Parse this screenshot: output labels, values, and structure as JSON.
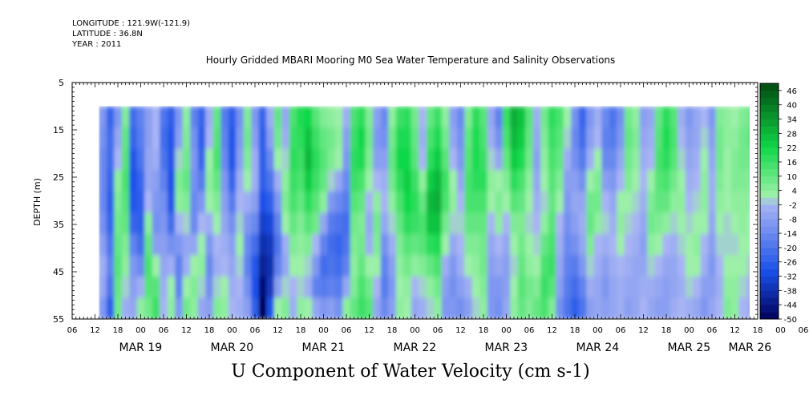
{
  "header": {
    "longitude": "LONGITUDE : 121.9W(-121.9)",
    "latitude": "LATITUDE : 36.8N",
    "year": "YEAR : 2011",
    "title": "Hourly Gridded MBARI Mooring M0 Sea Water Temperature and Salinity Observations"
  },
  "bottom_title": "U Component of Water Velocity (cm s-1)",
  "colors": {
    "deep_negative": "#00005a",
    "mid_negative": "#1a50e8",
    "light_negative": "#a8b4f4",
    "light_positive": "#9cf0a8",
    "mid_positive": "#10d848",
    "deep_positive": "#004a10"
  },
  "chart_data": {
    "type": "heatmap",
    "title": "Hourly Gridded MBARI Mooring M0 Sea Water Temperature and Salinity Observations",
    "variable": "U Component of Water Velocity (cm s-1)",
    "ylabel": "DEPTH (m)",
    "ylim": [
      5,
      55
    ],
    "y_inverted": true,
    "y_ticks": [
      5,
      15,
      25,
      35,
      45,
      55
    ],
    "data_depth_range": [
      10,
      55
    ],
    "x_start_hours": 6,
    "x_end_hours": 186,
    "data_start_hours": 13,
    "x_tick_labels": [
      "06",
      "12",
      "18",
      "00",
      "06",
      "12",
      "18",
      "00",
      "06",
      "12",
      "18",
      "00",
      "06",
      "12",
      "18",
      "00",
      "06",
      "12",
      "18",
      "00",
      "06",
      "12",
      "18",
      "00",
      "06",
      "12",
      "18",
      "00",
      "06",
      "12",
      "18",
      "00",
      "06"
    ],
    "day_labels": [
      {
        "label": "MAR 19",
        "hour": 24
      },
      {
        "label": "MAR 20",
        "hour": 48
      },
      {
        "label": "MAR 21",
        "hour": 72
      },
      {
        "label": "MAR 22",
        "hour": 96
      },
      {
        "label": "MAR 23",
        "hour": 120
      },
      {
        "label": "MAR 24",
        "hour": 144
      },
      {
        "label": "MAR 25",
        "hour": 168
      },
      {
        "label": "MAR 26",
        "hour": 184
      }
    ],
    "colorbar_labels": [
      "46",
      "40",
      "34",
      "28",
      "22",
      "16",
      "10",
      "4",
      "-2",
      "-8",
      "-14",
      "-20",
      "-26",
      "-32",
      "-38",
      "-44",
      "-50"
    ],
    "colorbar_range": [
      -50,
      49
    ],
    "colorbar_step": 3,
    "grid": false,
    "legend_placement": "right",
    "columns": [
      {
        "hour": 13,
        "u": [
          -10,
          -12,
          -14,
          -14,
          -14,
          -12,
          -8,
          -4,
          -6,
          -10
        ]
      },
      {
        "hour": 15,
        "u": [
          -24,
          -22,
          -22,
          -24,
          -26,
          -24,
          -20,
          -16,
          -20,
          -26
        ]
      },
      {
        "hour": 17,
        "u": [
          -10,
          -6,
          -2,
          4,
          6,
          8,
          10,
          12,
          10,
          8
        ]
      },
      {
        "hour": 19,
        "u": [
          6,
          10,
          12,
          14,
          12,
          10,
          6,
          4,
          0,
          -4
        ]
      },
      {
        "hour": 21,
        "u": [
          -22,
          -24,
          -28,
          -30,
          -28,
          -24,
          -16,
          -10,
          -8,
          -6
        ]
      },
      {
        "hour": 23,
        "u": [
          -16,
          -18,
          -20,
          -24,
          -26,
          -26,
          -22,
          -14,
          -4,
          4
        ]
      },
      {
        "hour": 25,
        "u": [
          -8,
          -8,
          -6,
          -6,
          -2,
          4,
          10,
          14,
          12,
          8
        ]
      },
      {
        "hour": 27,
        "u": [
          -2,
          -2,
          -4,
          -8,
          -10,
          -12,
          -8,
          2,
          12,
          16
        ]
      },
      {
        "hour": 29,
        "u": [
          -20,
          -22,
          -20,
          -16,
          -12,
          -10,
          -8,
          -6,
          -4,
          -2
        ]
      },
      {
        "hour": 31,
        "u": [
          -26,
          -28,
          -28,
          -30,
          -28,
          -22,
          -12,
          -4,
          2,
          4
        ]
      },
      {
        "hour": 33,
        "u": [
          -10,
          -8,
          0,
          6,
          4,
          -2,
          -10,
          -16,
          -16,
          -10
        ]
      },
      {
        "hour": 35,
        "u": [
          4,
          6,
          8,
          10,
          6,
          0,
          -6,
          -4,
          2,
          8
        ]
      },
      {
        "hour": 37,
        "u": [
          -16,
          -12,
          -10,
          -12,
          -14,
          -14,
          -6,
          2,
          6,
          4
        ]
      },
      {
        "hour": 39,
        "u": [
          -24,
          -26,
          -24,
          -18,
          -10,
          -2,
          2,
          4,
          0,
          -6
        ]
      },
      {
        "hour": 41,
        "u": [
          -4,
          -2,
          2,
          4,
          2,
          -4,
          -10,
          -14,
          -12,
          -8
        ]
      },
      {
        "hour": 43,
        "u": [
          10,
          12,
          14,
          10,
          6,
          2,
          -2,
          -4,
          0,
          6
        ]
      },
      {
        "hour": 45,
        "u": [
          -18,
          -16,
          -14,
          -10,
          -8,
          -6,
          -4,
          -2,
          2,
          4
        ]
      },
      {
        "hour": 47,
        "u": [
          -26,
          -28,
          -28,
          -24,
          -18,
          -12,
          -8,
          -6,
          -4,
          -2
        ]
      },
      {
        "hour": 49,
        "u": [
          -12,
          -10,
          -8,
          -4,
          -2,
          0,
          2,
          0,
          -2,
          -4
        ]
      },
      {
        "hour": 51,
        "u": [
          6,
          8,
          6,
          2,
          -4,
          -10,
          -14,
          -16,
          -12,
          -8
        ]
      },
      {
        "hour": 53,
        "u": [
          -10,
          -8,
          -4,
          -4,
          -8,
          -14,
          -22,
          -28,
          -30,
          -26
        ]
      },
      {
        "hour": 55,
        "u": [
          -24,
          -26,
          -26,
          -26,
          -30,
          -34,
          -38,
          -42,
          -46,
          -50
        ]
      },
      {
        "hour": 57,
        "u": [
          -4,
          -8,
          -14,
          -20,
          -26,
          -32,
          -36,
          -38,
          -36,
          -30
        ]
      },
      {
        "hour": 59,
        "u": [
          10,
          8,
          2,
          -4,
          -10,
          -16,
          -20,
          -16,
          -8,
          2
        ]
      },
      {
        "hour": 61,
        "u": [
          -6,
          -4,
          0,
          4,
          6,
          2,
          -4,
          -6,
          0,
          6
        ]
      },
      {
        "hour": 63,
        "u": [
          14,
          16,
          18,
          16,
          14,
          10,
          6,
          2,
          -2,
          -4
        ]
      },
      {
        "hour": 65,
        "u": [
          20,
          18,
          16,
          14,
          10,
          6,
          4,
          2,
          0,
          4
        ]
      },
      {
        "hour": 67,
        "u": [
          22,
          26,
          28,
          24,
          18,
          12,
          6,
          0,
          -4,
          2
        ]
      },
      {
        "hour": 69,
        "u": [
          12,
          16,
          18,
          16,
          12,
          8,
          -2,
          -10,
          -16,
          -6
        ]
      },
      {
        "hour": 71,
        "u": [
          6,
          10,
          12,
          10,
          4,
          -6,
          -16,
          -22,
          -18,
          -10
        ]
      },
      {
        "hour": 73,
        "u": [
          4,
          8,
          6,
          0,
          -10,
          -18,
          -22,
          -20,
          -16,
          -8
        ]
      },
      {
        "hour": 75,
        "u": [
          2,
          4,
          2,
          -6,
          -14,
          -20,
          -24,
          -22,
          -18,
          -12
        ]
      },
      {
        "hour": 77,
        "u": [
          -4,
          -8,
          -10,
          -14,
          -18,
          -22,
          -20,
          -16,
          -6,
          4
        ]
      },
      {
        "hour": 79,
        "u": [
          14,
          16,
          18,
          16,
          12,
          8,
          6,
          4,
          6,
          10
        ]
      },
      {
        "hour": 81,
        "u": [
          18,
          22,
          20,
          14,
          10,
          6,
          8,
          10,
          14,
          16
        ]
      },
      {
        "hour": 83,
        "u": [
          6,
          8,
          6,
          2,
          -2,
          -6,
          -4,
          2,
          8,
          12
        ]
      },
      {
        "hour": 85,
        "u": [
          -8,
          -10,
          -8,
          -2,
          4,
          8,
          6,
          2,
          -2,
          -6
        ]
      },
      {
        "hour": 87,
        "u": [
          -14,
          -12,
          -8,
          -4,
          -2,
          -6,
          -12,
          -16,
          -18,
          -14
        ]
      },
      {
        "hour": 89,
        "u": [
          4,
          8,
          10,
          8,
          4,
          0,
          -4,
          -8,
          -10,
          -8
        ]
      },
      {
        "hour": 91,
        "u": [
          16,
          20,
          22,
          18,
          14,
          10,
          6,
          4,
          2,
          4
        ]
      },
      {
        "hour": 93,
        "u": [
          18,
          20,
          22,
          24,
          22,
          18,
          12,
          8,
          4,
          2
        ]
      },
      {
        "hour": 95,
        "u": [
          8,
          10,
          12,
          16,
          18,
          16,
          10,
          4,
          -2,
          -6
        ]
      },
      {
        "hour": 97,
        "u": [
          -2,
          -4,
          -2,
          4,
          10,
          14,
          12,
          6,
          0,
          -4
        ]
      },
      {
        "hour": 99,
        "u": [
          10,
          14,
          18,
          24,
          28,
          26,
          18,
          10,
          4,
          0
        ]
      },
      {
        "hour": 101,
        "u": [
          16,
          20,
          24,
          28,
          30,
          26,
          20,
          14,
          8,
          4
        ]
      },
      {
        "hour": 103,
        "u": [
          4,
          8,
          12,
          16,
          14,
          8,
          2,
          -4,
          -8,
          -10
        ]
      },
      {
        "hour": 105,
        "u": [
          -8,
          -6,
          -2,
          2,
          4,
          0,
          -6,
          -10,
          -12,
          -10
        ]
      },
      {
        "hour": 107,
        "u": [
          -14,
          -12,
          -10,
          -6,
          -2,
          0,
          -2,
          -4,
          -8,
          -12
        ]
      },
      {
        "hour": 109,
        "u": [
          6,
          10,
          12,
          14,
          14,
          10,
          6,
          2,
          -4,
          -8
        ]
      },
      {
        "hour": 111,
        "u": [
          18,
          20,
          20,
          18,
          14,
          10,
          6,
          4,
          2,
          0
        ]
      },
      {
        "hour": 113,
        "u": [
          12,
          14,
          16,
          18,
          14,
          10,
          8,
          8,
          6,
          4
        ]
      },
      {
        "hour": 115,
        "u": [
          -6,
          -4,
          0,
          4,
          2,
          -2,
          -6,
          -8,
          -10,
          -10
        ]
      },
      {
        "hour": 117,
        "u": [
          -16,
          -12,
          -6,
          2,
          6,
          4,
          -2,
          -6,
          -10,
          -12
        ]
      },
      {
        "hour": 119,
        "u": [
          16,
          14,
          10,
          6,
          2,
          -2,
          -6,
          -8,
          -8,
          -6
        ]
      },
      {
        "hour": 121,
        "u": [
          30,
          28,
          24,
          18,
          12,
          6,
          2,
          0,
          2,
          4
        ]
      },
      {
        "hour": 123,
        "u": [
          26,
          24,
          20,
          14,
          10,
          6,
          8,
          10,
          12,
          10
        ]
      },
      {
        "hour": 125,
        "u": [
          12,
          10,
          8,
          4,
          2,
          0,
          2,
          4,
          8,
          6
        ]
      },
      {
        "hour": 127,
        "u": [
          -4,
          -6,
          -8,
          -6,
          -4,
          -2,
          0,
          2,
          6,
          10
        ]
      },
      {
        "hour": 129,
        "u": [
          8,
          6,
          4,
          2,
          0,
          4,
          10,
          14,
          16,
          14
        ]
      },
      {
        "hour": 131,
        "u": [
          18,
          16,
          14,
          12,
          10,
          12,
          14,
          16,
          12,
          6
        ]
      },
      {
        "hour": 133,
        "u": [
          14,
          12,
          10,
          6,
          2,
          -2,
          -4,
          -6,
          -8,
          -12
        ]
      },
      {
        "hour": 135,
        "u": [
          2,
          0,
          -4,
          -8,
          -10,
          -12,
          -14,
          -16,
          -18,
          -20
        ]
      },
      {
        "hour": 137,
        "u": [
          -12,
          -14,
          -12,
          -8,
          -6,
          -8,
          -12,
          -18,
          -22,
          -26
        ]
      },
      {
        "hour": 139,
        "u": [
          -24,
          -22,
          -18,
          -12,
          -6,
          -4,
          -6,
          -10,
          -16,
          -20
        ]
      },
      {
        "hour": 141,
        "u": [
          -10,
          -8,
          -4,
          2,
          8,
          10,
          6,
          0,
          -4,
          -8
        ]
      },
      {
        "hour": 143,
        "u": [
          -4,
          -2,
          2,
          6,
          8,
          4,
          -2,
          -4,
          -6,
          -6
        ]
      },
      {
        "hour": 145,
        "u": [
          -14,
          -16,
          -14,
          -8,
          -2,
          0,
          -4,
          -8,
          -10,
          -8
        ]
      },
      {
        "hour": 147,
        "u": [
          -20,
          -18,
          -14,
          -10,
          -6,
          -4,
          -2,
          -4,
          -6,
          -6
        ]
      },
      {
        "hour": 149,
        "u": [
          -12,
          -10,
          -6,
          -2,
          2,
          4,
          2,
          -2,
          -4,
          -4
        ]
      },
      {
        "hour": 151,
        "u": [
          8,
          10,
          8,
          6,
          2,
          0,
          -2,
          -4,
          -6,
          -8
        ]
      },
      {
        "hour": 153,
        "u": [
          4,
          6,
          4,
          2,
          0,
          -2,
          -4,
          -6,
          -6,
          -6
        ]
      },
      {
        "hour": 155,
        "u": [
          -8,
          -6,
          -4,
          -2,
          -4,
          -6,
          -8,
          -6,
          -4,
          -2
        ]
      },
      {
        "hour": 157,
        "u": [
          -6,
          -4,
          -2,
          2,
          6,
          8,
          4,
          0,
          -4,
          -6
        ]
      },
      {
        "hour": 159,
        "u": [
          10,
          12,
          14,
          12,
          10,
          6,
          2,
          -2,
          -6,
          -8
        ]
      },
      {
        "hour": 161,
        "u": [
          18,
          20,
          18,
          14,
          10,
          4,
          -2,
          -6,
          -8,
          -8
        ]
      },
      {
        "hour": 163,
        "u": [
          12,
          14,
          12,
          8,
          4,
          0,
          -4,
          -6,
          -6,
          -4
        ]
      },
      {
        "hour": 165,
        "u": [
          -4,
          -2,
          0,
          2,
          4,
          2,
          0,
          -2,
          -4,
          -2
        ]
      },
      {
        "hour": 167,
        "u": [
          -10,
          -8,
          -6,
          -4,
          -2,
          0,
          2,
          2,
          0,
          -4
        ]
      },
      {
        "hour": 169,
        "u": [
          -6,
          -6,
          -4,
          -2,
          0,
          2,
          4,
          2,
          -2,
          -6
        ]
      },
      {
        "hour": 171,
        "u": [
          -2,
          0,
          2,
          4,
          4,
          2,
          -2,
          -4,
          -8,
          -10
        ]
      },
      {
        "hour": 173,
        "u": [
          -10,
          -8,
          -6,
          -4,
          -4,
          -6,
          -8,
          -10,
          -8,
          -6
        ]
      },
      {
        "hour": 175,
        "u": [
          6,
          8,
          8,
          6,
          4,
          2,
          0,
          -2,
          -4,
          -2
        ]
      },
      {
        "hour": 177,
        "u": [
          4,
          4,
          2,
          2,
          2,
          0,
          0,
          2,
          4,
          6
        ]
      },
      {
        "hour": 179,
        "u": [
          2,
          4,
          6,
          6,
          4,
          2,
          0,
          2,
          4,
          4
        ]
      },
      {
        "hour": 181,
        "u": [
          6,
          8,
          8,
          6,
          4,
          4,
          2,
          2,
          0,
          -2
        ]
      },
      {
        "hour": 183,
        "u": [
          8,
          10,
          8,
          6,
          4,
          2,
          2,
          0,
          -2,
          -4
        ]
      },
      {
        "hour": 185,
        "u": [
          10,
          10,
          8,
          6,
          4,
          2,
          0,
          -2,
          -2,
          -4
        ]
      }
    ]
  }
}
